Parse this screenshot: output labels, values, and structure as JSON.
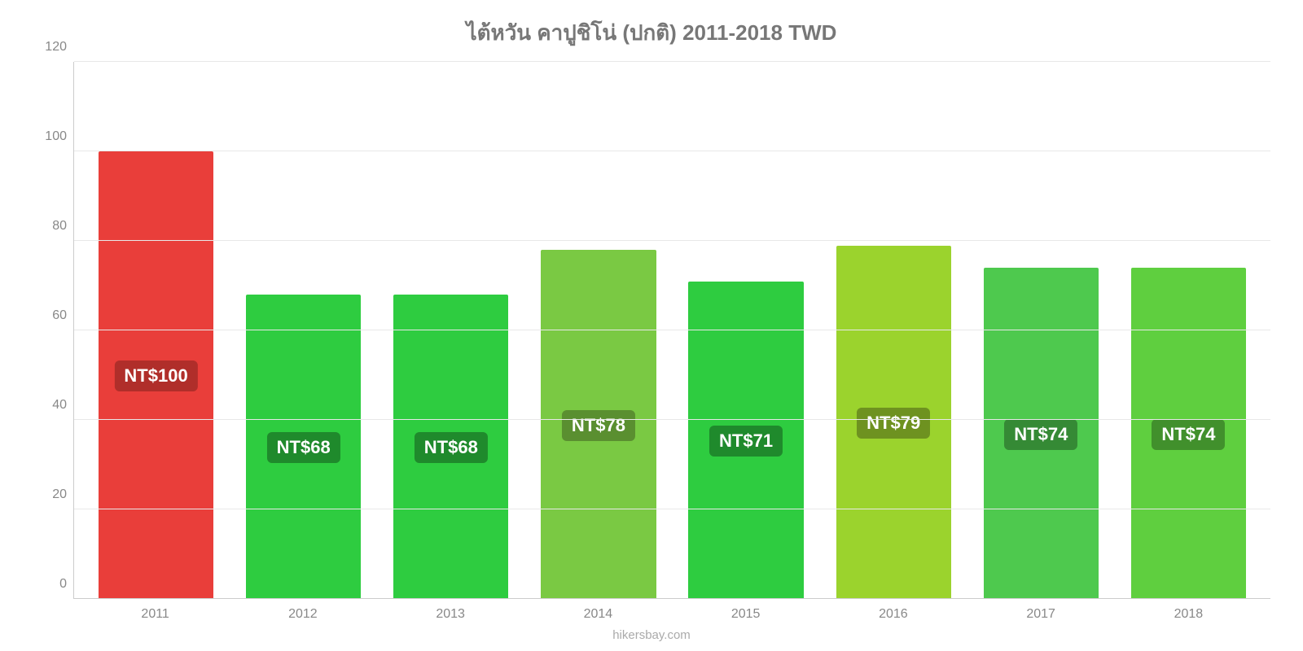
{
  "chart": {
    "type": "bar",
    "title": "ไต้หวัน คาปูชิโน่ (ปกติ) 2011-2018 TWD",
    "title_fontsize": 26,
    "title_color": "#777777",
    "attribution": "hikersbay.com",
    "attribution_color": "#aaaaaa",
    "background_color": "#ffffff",
    "grid_color": "#e8e8e8",
    "axis_color": "#cccccc",
    "tick_color": "#888888",
    "ylim": [
      0,
      120
    ],
    "ytick_step": 20,
    "yticks": [
      0,
      20,
      40,
      60,
      80,
      100,
      120
    ],
    "categories": [
      "2011",
      "2012",
      "2013",
      "2014",
      "2015",
      "2016",
      "2017",
      "2018"
    ],
    "values": [
      100,
      68,
      68,
      78,
      71,
      79,
      74,
      74
    ],
    "value_labels": [
      "NT$100",
      "NT$68",
      "NT$68",
      "NT$78",
      "NT$71",
      "NT$79",
      "NT$74",
      "NT$74"
    ],
    "bar_colors": [
      "#e93e3a",
      "#2ecc40",
      "#2ecc40",
      "#7ac943",
      "#2ecc40",
      "#9bd32d",
      "#4ec94e",
      "#5fcf3f"
    ],
    "badge_colors": [
      "#b02e2a",
      "#1f8a2c",
      "#1f8a2c",
      "#5a8f30",
      "#1f8a2c",
      "#6e9220",
      "#358a35",
      "#41902c"
    ],
    "bar_width": 0.78,
    "label_fontsize": 22,
    "tick_fontsize": 16
  }
}
